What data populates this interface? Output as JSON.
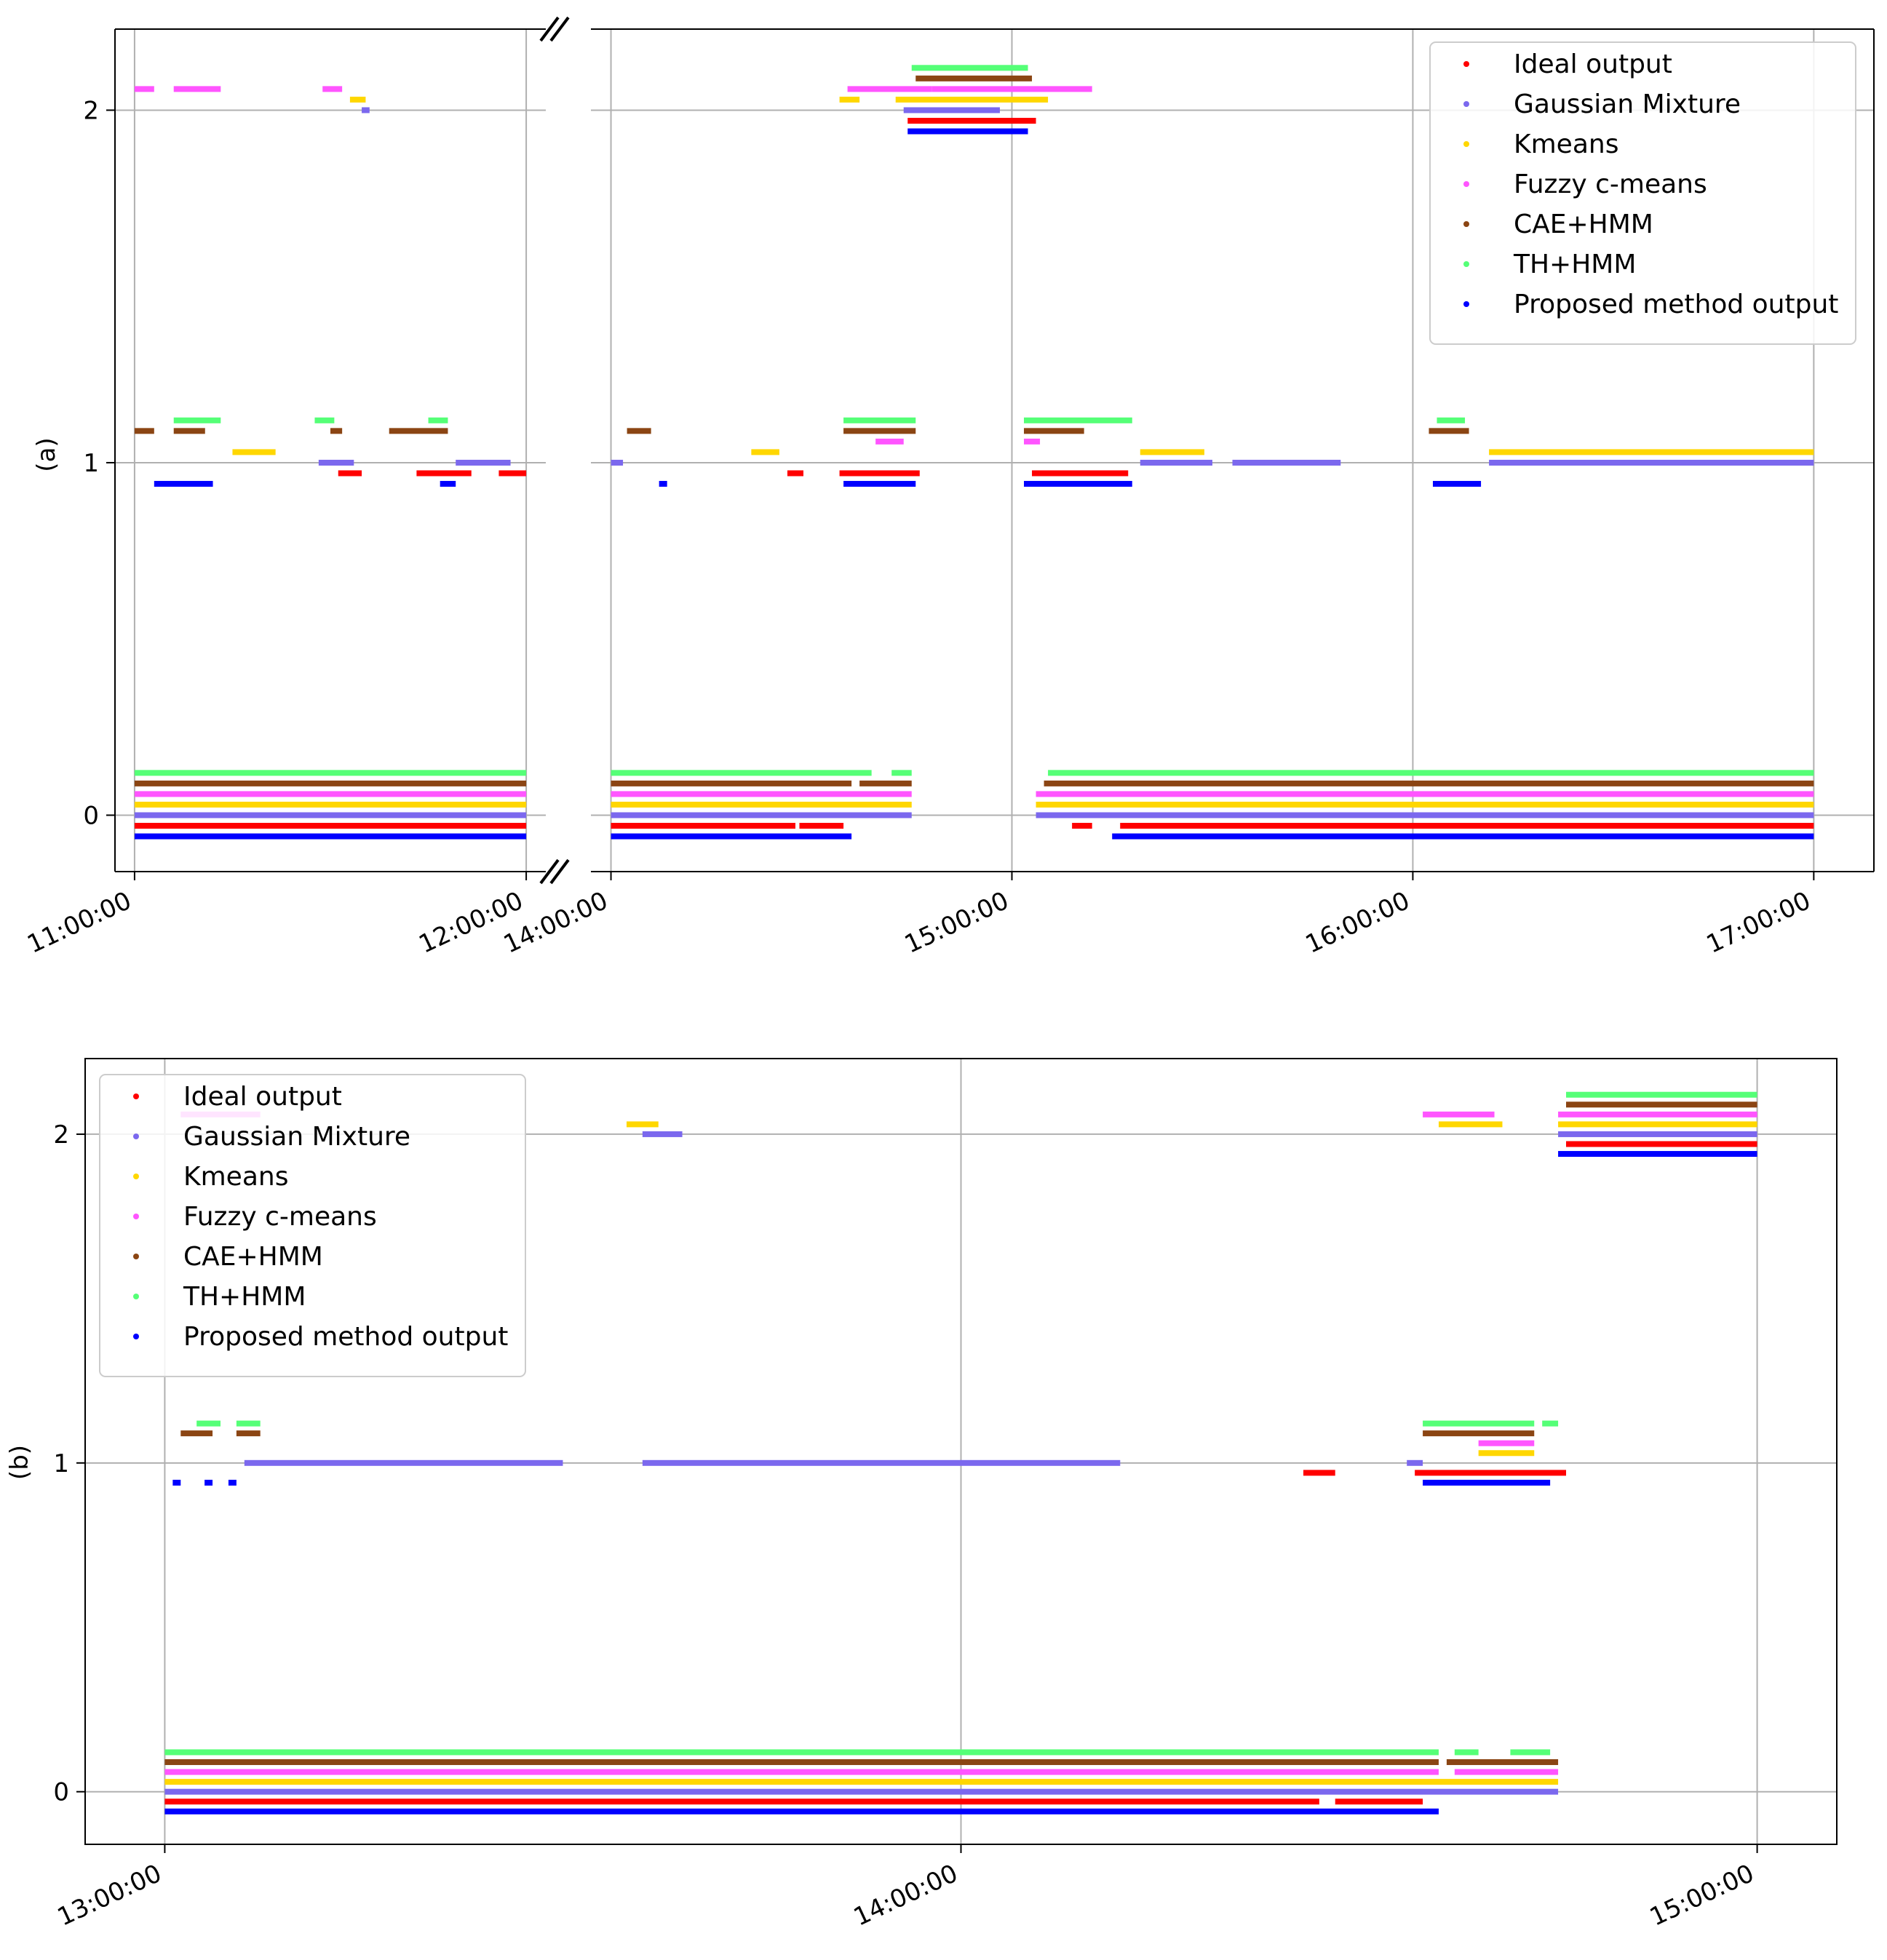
{
  "figure": {
    "legend_entries": [
      {
        "name": "Ideal output",
        "color": "#ff0000"
      },
      {
        "name": "Gaussian Mixture",
        "color": "#7b68ee"
      },
      {
        "name": "Kmeans",
        "color": "#ffd700"
      },
      {
        "name": "Fuzzy c-means",
        "color": "#ff55ff"
      },
      {
        "name": "CAE+HMM",
        "color": "#8b4513"
      },
      {
        "name": "TH+HMM",
        "color": "#55ff77"
      },
      {
        "name": "Proposed method output",
        "color": "#0000ff"
      }
    ]
  },
  "chart_data": [
    {
      "type": "scatter",
      "panel_label": "(a)",
      "ylabel": "(a)",
      "yticks": [
        0,
        1,
        2
      ],
      "ylim": [
        -0.16,
        2.23
      ],
      "x_unit": "hours of day",
      "broken_axis": true,
      "segments": [
        {
          "xlim": [
            10.95,
            12.05
          ],
          "ticks": [
            11,
            12
          ],
          "tick_labels": [
            "11:00:00",
            "12:00:00"
          ]
        },
        {
          "xlim": [
            13.95,
            17.15
          ],
          "ticks": [
            14,
            15,
            16,
            17
          ],
          "tick_labels": [
            "14:00:00",
            "15:00:00",
            "16:00:00",
            "17:00:00"
          ]
        }
      ],
      "legend_position": "top-right",
      "series": [
        {
          "name": "Ideal output",
          "offset": -0.03,
          "runs": [
            [
              11.0,
              12.0,
              0
            ],
            [
              14.0,
              14.46,
              0
            ],
            [
              14.47,
              14.58,
              0
            ],
            [
              15.15,
              15.2,
              0
            ],
            [
              15.27,
              17.0,
              0
            ],
            [
              11.52,
              11.58,
              1
            ],
            [
              11.72,
              11.86,
              1
            ],
            [
              11.93,
              12.0,
              1
            ],
            [
              14.44,
              14.48,
              1
            ],
            [
              14.57,
              14.77,
              1
            ],
            [
              15.05,
              15.29,
              1
            ],
            [
              14.74,
              15.06,
              2
            ]
          ]
        },
        {
          "name": "Gaussian Mixture",
          "offset": 0.0,
          "runs": [
            [
              11.0,
              12.0,
              0
            ],
            [
              14.0,
              14.75,
              0
            ],
            [
              15.06,
              17.0,
              0
            ],
            [
              11.47,
              11.56,
              1
            ],
            [
              11.82,
              11.96,
              1
            ],
            [
              14.0,
              14.03,
              1
            ],
            [
              15.32,
              15.5,
              1
            ],
            [
              15.55,
              15.82,
              1
            ],
            [
              16.19,
              17.0,
              1
            ],
            [
              11.58,
              11.6,
              2
            ],
            [
              14.73,
              14.97,
              2
            ]
          ]
        },
        {
          "name": "Kmeans",
          "offset": 0.03,
          "runs": [
            [
              11.0,
              12.0,
              0
            ],
            [
              14.0,
              14.75,
              0
            ],
            [
              15.06,
              17.0,
              0
            ],
            [
              11.25,
              11.36,
              1
            ],
            [
              14.35,
              14.42,
              1
            ],
            [
              15.32,
              15.48,
              1
            ],
            [
              16.19,
              17.0,
              1
            ],
            [
              11.55,
              11.59,
              2
            ],
            [
              14.57,
              14.62,
              2
            ],
            [
              14.71,
              15.09,
              2
            ]
          ]
        },
        {
          "name": "Fuzzy c-means",
          "offset": 0.06,
          "runs": [
            [
              11.0,
              12.0,
              0
            ],
            [
              14.0,
              14.75,
              0
            ],
            [
              15.06,
              17.0,
              0
            ],
            [
              14.66,
              14.73,
              1
            ],
            [
              15.03,
              15.07,
              1
            ],
            [
              11.0,
              11.05,
              2
            ],
            [
              11.1,
              11.22,
              2
            ],
            [
              11.48,
              11.53,
              2
            ],
            [
              14.59,
              14.8,
              2
            ],
            [
              14.8,
              15.2,
              2
            ]
          ]
        },
        {
          "name": "CAE+HMM",
          "offset": 0.09,
          "runs": [
            [
              11.0,
              12.0,
              0
            ],
            [
              14.0,
              14.6,
              0
            ],
            [
              14.62,
              14.75,
              0
            ],
            [
              15.08,
              17.0,
              0
            ],
            [
              11.0,
              11.05,
              1
            ],
            [
              11.1,
              11.18,
              1
            ],
            [
              11.5,
              11.53,
              1
            ],
            [
              11.65,
              11.8,
              1
            ],
            [
              14.04,
              14.1,
              1
            ],
            [
              14.58,
              14.76,
              1
            ],
            [
              15.03,
              15.18,
              1
            ],
            [
              16.04,
              16.14,
              1
            ],
            [
              14.76,
              15.05,
              2
            ]
          ]
        },
        {
          "name": "TH+HMM",
          "offset": 0.12,
          "runs": [
            [
              11.0,
              12.0,
              0
            ],
            [
              14.0,
              14.65,
              0
            ],
            [
              14.7,
              14.75,
              0
            ],
            [
              15.09,
              17.0,
              0
            ],
            [
              11.1,
              11.22,
              1
            ],
            [
              11.46,
              11.51,
              1
            ],
            [
              11.75,
              11.8,
              1
            ],
            [
              14.58,
              14.76,
              1
            ],
            [
              15.03,
              15.3,
              1
            ],
            [
              16.06,
              16.13,
              1
            ],
            [
              14.75,
              15.04,
              2
            ]
          ]
        },
        {
          "name": "Proposed method output",
          "offset": -0.06,
          "runs": [
            [
              11.0,
              12.0,
              0
            ],
            [
              14.0,
              14.6,
              0
            ],
            [
              15.25,
              17.0,
              0
            ],
            [
              11.05,
              11.2,
              1
            ],
            [
              11.78,
              11.82,
              1
            ],
            [
              14.12,
              14.14,
              1
            ],
            [
              14.58,
              14.76,
              1
            ],
            [
              15.03,
              15.3,
              1
            ],
            [
              16.05,
              16.17,
              1
            ],
            [
              14.74,
              15.04,
              2
            ]
          ]
        }
      ]
    },
    {
      "type": "scatter",
      "panel_label": "(b)",
      "ylabel": "(b)",
      "yticks": [
        0,
        1,
        2
      ],
      "ylim": [
        -0.16,
        2.23
      ],
      "x_unit": "hours of day",
      "xlim": [
        12.9,
        15.1
      ],
      "xticks": [
        13,
        14,
        15
      ],
      "xtick_labels": [
        "13:00:00",
        "14:00:00",
        "15:00:00"
      ],
      "legend_position": "top-left",
      "series": [
        {
          "name": "Ideal output",
          "offset": -0.03,
          "runs": [
            [
              13.0,
              14.45,
              0
            ],
            [
              14.47,
              14.58,
              0
            ],
            [
              14.43,
              14.47,
              1
            ],
            [
              14.57,
              14.76,
              1
            ],
            [
              14.76,
              15.0,
              2
            ]
          ]
        },
        {
          "name": "Gaussian Mixture",
          "offset": 0.0,
          "runs": [
            [
              13.0,
              14.75,
              0
            ],
            [
              13.1,
              13.5,
              1
            ],
            [
              13.6,
              14.2,
              1
            ],
            [
              14.56,
              14.58,
              1
            ],
            [
              13.6,
              13.65,
              2
            ],
            [
              14.75,
              15.0,
              2
            ]
          ]
        },
        {
          "name": "Kmeans",
          "offset": 0.03,
          "runs": [
            [
              13.0,
              14.75,
              0
            ],
            [
              14.65,
              14.72,
              1
            ],
            [
              13.58,
              13.62,
              2
            ],
            [
              14.6,
              14.68,
              2
            ],
            [
              14.75,
              15.0,
              2
            ]
          ]
        },
        {
          "name": "Fuzzy c-means",
          "offset": 0.06,
          "runs": [
            [
              13.0,
              14.6,
              0
            ],
            [
              14.62,
              14.75,
              0
            ],
            [
              14.65,
              14.72,
              1
            ],
            [
              13.02,
              13.12,
              2
            ],
            [
              14.58,
              14.67,
              2
            ],
            [
              14.75,
              15.0,
              2
            ]
          ]
        },
        {
          "name": "CAE+HMM",
          "offset": 0.09,
          "runs": [
            [
              13.0,
              14.6,
              0
            ],
            [
              14.61,
              14.75,
              0
            ],
            [
              13.02,
              13.06,
              1
            ],
            [
              13.09,
              13.12,
              1
            ],
            [
              14.58,
              14.72,
              1
            ],
            [
              14.76,
              15.0,
              2
            ]
          ]
        },
        {
          "name": "TH+HMM",
          "offset": 0.12,
          "runs": [
            [
              13.0,
              14.6,
              0
            ],
            [
              14.62,
              14.65,
              0
            ],
            [
              14.69,
              14.74,
              0
            ],
            [
              13.04,
              13.07,
              1
            ],
            [
              13.09,
              13.12,
              1
            ],
            [
              14.58,
              14.72,
              1
            ],
            [
              14.73,
              14.75,
              1
            ],
            [
              14.76,
              15.0,
              2
            ]
          ]
        },
        {
          "name": "Proposed method output",
          "offset": -0.06,
          "runs": [
            [
              13.0,
              14.6,
              0
            ],
            [
              13.01,
              13.02,
              1
            ],
            [
              13.05,
              13.06,
              1
            ],
            [
              13.08,
              13.09,
              1
            ],
            [
              14.58,
              14.74,
              1
            ],
            [
              14.75,
              15.0,
              2
            ]
          ]
        }
      ]
    }
  ]
}
